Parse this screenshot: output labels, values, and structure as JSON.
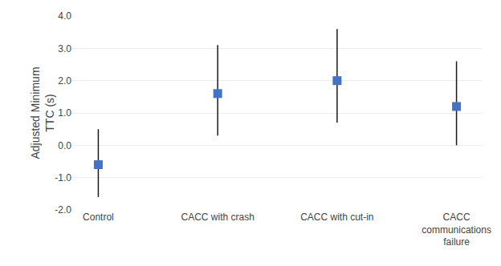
{
  "chart_data": {
    "type": "scatter",
    "categories": [
      "Control",
      "CACC with crash",
      "CACC with cut-in",
      "CACC\ncommunications\nfailure"
    ],
    "ylabel": "Adjusted Minimum\nTTC (s)",
    "series": [
      {
        "type": "range",
        "lower": [
          -1.6,
          0.3,
          0.7,
          0.0
        ],
        "upper": [
          0.5,
          3.1,
          3.6,
          2.6
        ],
        "color": "#1a1a1a"
      },
      {
        "type": "scatter",
        "values": [
          -0.6,
          1.6,
          2.0,
          1.2
        ],
        "color": "#4472C4",
        "marker": "square"
      }
    ],
    "ylim": [
      -2.0,
      4.0
    ],
    "yticks": [
      {
        "value": -2.0,
        "label": "-2.0"
      },
      {
        "value": -1.0,
        "label": "-1.0"
      },
      {
        "value": 0.0,
        "label": "0.0"
      },
      {
        "value": 1.0,
        "label": "1.0"
      },
      {
        "value": 2.0,
        "label": "2.0"
      },
      {
        "value": 3.0,
        "label": "3.0"
      },
      {
        "value": 4.0,
        "label": "4.0"
      }
    ],
    "grid": true
  }
}
